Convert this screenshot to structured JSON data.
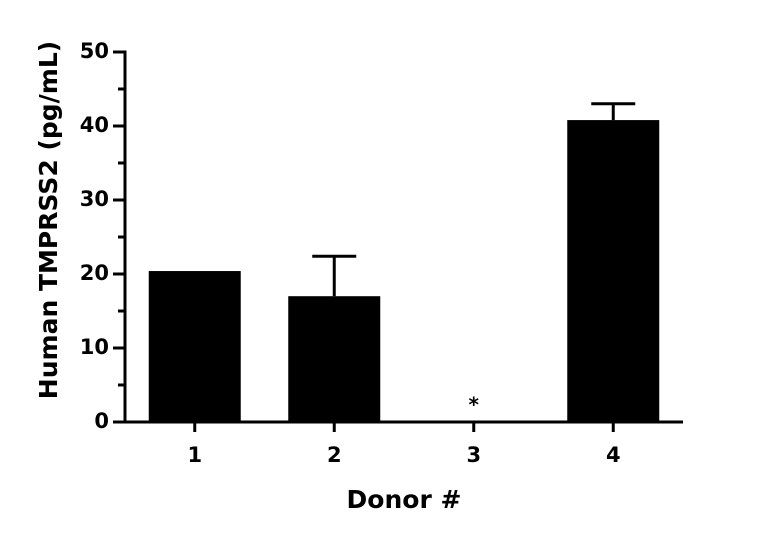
{
  "chart_data": {
    "type": "bar",
    "y_label": "Human TMPRSS2 (pg/mL)",
    "x_label": "Donor #",
    "categories": [
      "1",
      "2",
      "3",
      "4"
    ],
    "values": [
      20.4,
      17.0,
      null,
      40.8
    ],
    "errors": [
      null,
      5.4,
      null,
      2.2
    ],
    "color": "#000000",
    "annotations": [
      {
        "text": "*",
        "category": "3"
      }
    ],
    "ylim": [
      0,
      50
    ],
    "yticks": [
      0,
      10,
      20,
      30,
      40,
      50
    ],
    "yminorticks": [
      5,
      15,
      25,
      35,
      45
    ]
  }
}
